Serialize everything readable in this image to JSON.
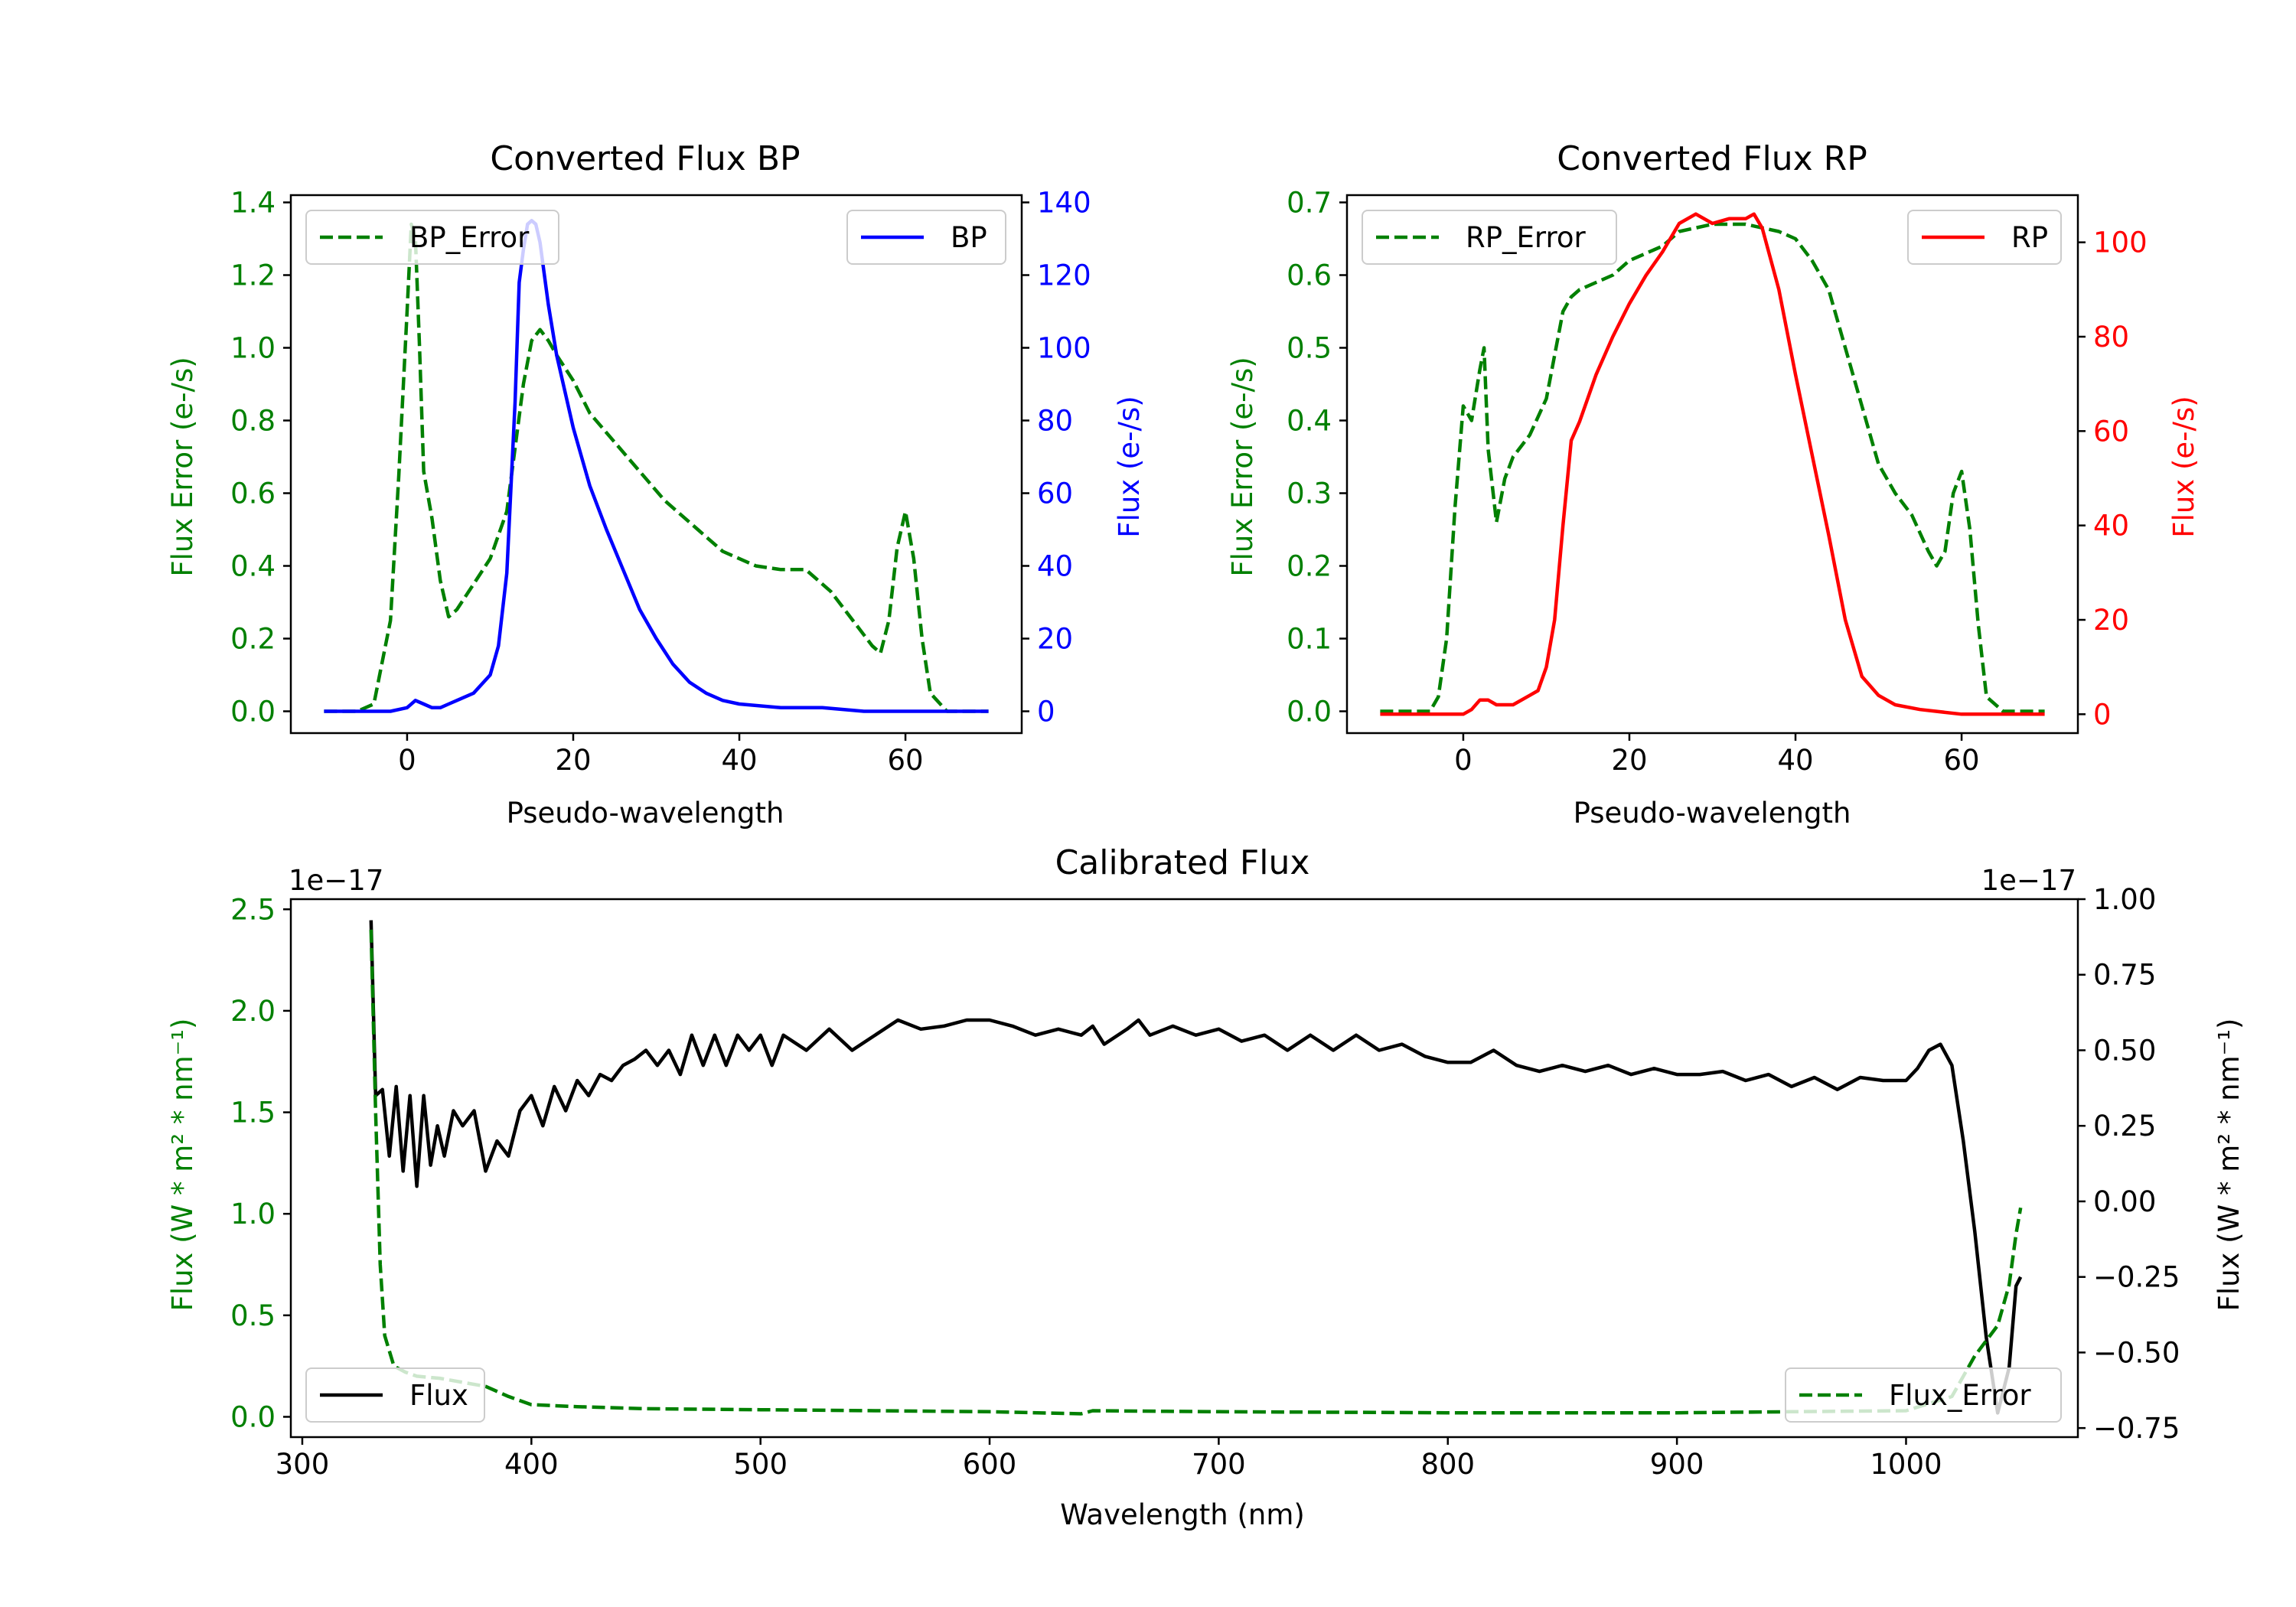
{
  "colors": {
    "green": "#008000",
    "blue": "#0000ff",
    "red": "#ff0000",
    "black": "#000000"
  },
  "chart_data": [
    {
      "type": "line",
      "title": "Converted Flux BP",
      "xlabel": "Pseudo-wavelength",
      "ylabel_left": "Flux Error (e-/s)",
      "ylabel_right": "Flux (e-/s)",
      "xlim": [
        -14,
        74
      ],
      "ylim_left": [
        -0.06,
        1.42
      ],
      "ylim_right": [
        -6,
        142
      ],
      "xticks": [
        0,
        20,
        40,
        60
      ],
      "yticks_left": [
        0.0,
        0.2,
        0.4,
        0.6,
        0.8,
        1.0,
        1.2,
        1.4
      ],
      "yticks_left_labels": [
        "0.0",
        "0.2",
        "0.4",
        "0.6",
        "0.8",
        "1.0",
        "1.2",
        "1.4"
      ],
      "yticks_right": [
        0,
        20,
        40,
        60,
        80,
        100,
        120,
        140
      ],
      "yticks_right_labels": [
        "0",
        "20",
        "40",
        "60",
        "80",
        "100",
        "120",
        "140"
      ],
      "series": [
        {
          "name": "BP_Error",
          "axis": "left",
          "style": "dashed",
          "color": "#008000",
          "x": [
            -10,
            -6,
            -4,
            -2,
            -1,
            0,
            0.5,
            1,
            1.5,
            2,
            3,
            4,
            5,
            5.5,
            6,
            8,
            10,
            12,
            14,
            15,
            16,
            17,
            18,
            20,
            22,
            25,
            28,
            31,
            35,
            38,
            42,
            45,
            48,
            51,
            54,
            56,
            57,
            58,
            59,
            60,
            61,
            62,
            63,
            65,
            70
          ],
          "y": [
            0,
            0,
            0.02,
            0.25,
            0.65,
            1.1,
            1.34,
            1.3,
            1.0,
            0.66,
            0.53,
            0.36,
            0.26,
            0.27,
            0.28,
            0.35,
            0.42,
            0.55,
            0.9,
            1.02,
            1.05,
            1.02,
            0.98,
            0.91,
            0.82,
            0.74,
            0.66,
            0.58,
            0.5,
            0.44,
            0.4,
            0.39,
            0.39,
            0.33,
            0.24,
            0.18,
            0.16,
            0.25,
            0.45,
            0.55,
            0.42,
            0.2,
            0.05,
            0,
            0
          ]
        },
        {
          "name": "BP",
          "axis": "right",
          "style": "solid",
          "color": "#0000ff",
          "x": [
            -10,
            -2,
            0,
            1,
            2,
            3,
            4,
            5,
            6,
            8,
            10,
            11,
            12,
            13,
            13.5,
            14,
            14.5,
            15,
            15.5,
            16,
            17,
            18,
            20,
            22,
            24,
            26,
            28,
            30,
            32,
            34,
            36,
            38,
            40,
            45,
            50,
            55,
            60,
            65,
            70
          ],
          "y": [
            0,
            0,
            1,
            3,
            2,
            1,
            1,
            2,
            3,
            5,
            10,
            18,
            38,
            85,
            118,
            127,
            134,
            135,
            134,
            129,
            112,
            98,
            78,
            62,
            50,
            39,
            28,
            20,
            13,
            8,
            5,
            3,
            2,
            1,
            1,
            0,
            0,
            0,
            0
          ]
        }
      ],
      "legend": [
        {
          "label": "BP_Error",
          "position": "upper-left"
        },
        {
          "label": "BP",
          "position": "upper-right"
        }
      ]
    },
    {
      "type": "line",
      "title": "Converted Flux RP",
      "xlabel": "Pseudo-wavelength",
      "ylabel_left": "Flux Error (e-/s)",
      "ylabel_right": "Flux (e-/s)",
      "xlim": [
        -14,
        74
      ],
      "ylim_left": [
        -0.03,
        0.71
      ],
      "ylim_right": [
        -4,
        110
      ],
      "xticks": [
        0,
        20,
        40,
        60
      ],
      "yticks_left": [
        0.0,
        0.1,
        0.2,
        0.3,
        0.4,
        0.5,
        0.6,
        0.7
      ],
      "yticks_left_labels": [
        "0.0",
        "0.1",
        "0.2",
        "0.3",
        "0.4",
        "0.5",
        "0.6",
        "0.7"
      ],
      "yticks_right": [
        0,
        20,
        40,
        60,
        80,
        100
      ],
      "yticks_right_labels": [
        "0",
        "20",
        "40",
        "60",
        "80",
        "100"
      ],
      "series": [
        {
          "name": "RP_Error",
          "axis": "left",
          "style": "dashed",
          "color": "#008000",
          "x": [
            -10,
            -4,
            -3,
            -2,
            -1,
            0,
            1,
            2,
            2.5,
            3,
            4,
            5,
            6,
            8,
            10,
            12,
            13,
            14,
            16,
            18,
            20,
            22,
            24,
            26,
            28,
            30,
            32,
            34,
            36,
            38,
            40,
            42,
            44,
            46,
            48,
            50,
            52,
            54,
            56,
            57,
            58,
            59,
            60,
            61,
            62,
            63,
            65,
            70
          ],
          "y": [
            0,
            0,
            0.02,
            0.1,
            0.28,
            0.42,
            0.4,
            0.47,
            0.5,
            0.36,
            0.26,
            0.32,
            0.35,
            0.38,
            0.43,
            0.55,
            0.57,
            0.58,
            0.59,
            0.6,
            0.62,
            0.63,
            0.64,
            0.66,
            0.665,
            0.67,
            0.67,
            0.67,
            0.665,
            0.66,
            0.65,
            0.62,
            0.58,
            0.5,
            0.42,
            0.34,
            0.3,
            0.27,
            0.22,
            0.2,
            0.22,
            0.3,
            0.33,
            0.25,
            0.12,
            0.02,
            0,
            0
          ]
        },
        {
          "name": "RP",
          "axis": "right",
          "style": "solid",
          "color": "#ff0000",
          "x": [
            -10,
            -2,
            0,
            1,
            2,
            3,
            4,
            5,
            6,
            8,
            9,
            10,
            11,
            12,
            13,
            14,
            16,
            18,
            20,
            22,
            24,
            26,
            28,
            30,
            32,
            34,
            35,
            36,
            38,
            40,
            42,
            44,
            46,
            48,
            50,
            52,
            55,
            60,
            65,
            70
          ],
          "y": [
            0,
            0,
            0,
            1,
            3,
            3,
            2,
            2,
            2,
            4,
            5,
            10,
            20,
            40,
            58,
            62,
            72,
            80,
            87,
            93,
            98,
            104,
            106,
            104,
            105,
            105,
            106,
            103,
            90,
            72,
            55,
            38,
            20,
            8,
            4,
            2,
            1,
            0,
            0,
            0
          ]
        }
      ],
      "legend": [
        {
          "label": "RP_Error",
          "position": "upper-left"
        },
        {
          "label": "RP",
          "position": "upper-right"
        }
      ]
    },
    {
      "type": "line",
      "title": "Calibrated Flux",
      "xlabel": "Wavelength (nm)",
      "ylabel_left": "Flux (W * m² * nm⁻¹)",
      "ylabel_right": "Flux (W * m² * nm⁻¹)",
      "offset_left": "1e−17",
      "offset_right": "1e−17",
      "xlim": [
        295,
        1075
      ],
      "ylim_left": [
        -0.1,
        2.55
      ],
      "ylim_right": [
        -0.78,
        1.0
      ],
      "xticks": [
        300,
        400,
        500,
        600,
        700,
        800,
        900,
        1000
      ],
      "yticks_left": [
        0.0,
        0.5,
        1.0,
        1.5,
        2.0,
        2.5
      ],
      "yticks_left_labels": [
        "0.0",
        "0.5",
        "1.0",
        "1.5",
        "2.0",
        "2.5"
      ],
      "yticks_right": [
        -0.75,
        -0.5,
        -0.25,
        0.0,
        0.25,
        0.5,
        0.75,
        1.0
      ],
      "yticks_right_labels": [
        "−0.75",
        "−0.50",
        "−0.25",
        "0.00",
        "0.25",
        "0.50",
        "0.75",
        "1.00"
      ],
      "series": [
        {
          "name": "Flux",
          "axis": "right",
          "style": "solid",
          "color": "#000000",
          "x": [
            330,
            332,
            335,
            338,
            341,
            344,
            347,
            350,
            353,
            356,
            359,
            362,
            366,
            370,
            375,
            380,
            385,
            390,
            395,
            400,
            405,
            410,
            415,
            420,
            425,
            430,
            435,
            440,
            445,
            450,
            455,
            460,
            465,
            470,
            475,
            480,
            485,
            490,
            495,
            500,
            505,
            510,
            520,
            530,
            540,
            550,
            560,
            570,
            580,
            590,
            600,
            610,
            620,
            630,
            640,
            645,
            650,
            660,
            665,
            670,
            680,
            690,
            700,
            710,
            720,
            730,
            740,
            750,
            760,
            770,
            780,
            790,
            800,
            810,
            820,
            830,
            840,
            850,
            860,
            870,
            880,
            890,
            900,
            910,
            920,
            930,
            940,
            950,
            960,
            970,
            980,
            990,
            1000,
            1005,
            1010,
            1015,
            1020,
            1025,
            1030,
            1035,
            1040,
            1045,
            1048,
            1050
          ],
          "y": [
            0.93,
            0.35,
            0.37,
            0.15,
            0.38,
            0.1,
            0.35,
            0.05,
            0.35,
            0.12,
            0.25,
            0.15,
            0.3,
            0.25,
            0.3,
            0.1,
            0.2,
            0.15,
            0.3,
            0.35,
            0.25,
            0.38,
            0.3,
            0.4,
            0.35,
            0.42,
            0.4,
            0.45,
            0.47,
            0.5,
            0.45,
            0.5,
            0.42,
            0.55,
            0.45,
            0.55,
            0.45,
            0.55,
            0.5,
            0.55,
            0.45,
            0.55,
            0.5,
            0.57,
            0.5,
            0.55,
            0.6,
            0.57,
            0.58,
            0.6,
            0.6,
            0.58,
            0.55,
            0.57,
            0.55,
            0.58,
            0.52,
            0.57,
            0.6,
            0.55,
            0.58,
            0.55,
            0.57,
            0.53,
            0.55,
            0.5,
            0.55,
            0.5,
            0.55,
            0.5,
            0.52,
            0.48,
            0.46,
            0.46,
            0.5,
            0.45,
            0.43,
            0.45,
            0.43,
            0.45,
            0.42,
            0.44,
            0.42,
            0.42,
            0.43,
            0.4,
            0.42,
            0.38,
            0.41,
            0.37,
            0.41,
            0.4,
            0.4,
            0.44,
            0.5,
            0.52,
            0.45,
            0.2,
            -0.1,
            -0.45,
            -0.7,
            -0.55,
            -0.28,
            -0.25
          ]
        },
        {
          "name": "Flux_Error",
          "axis": "left",
          "style": "dashed",
          "color": "#008000",
          "x": [
            330,
            332,
            334,
            336,
            340,
            345,
            350,
            360,
            370,
            380,
            390,
            400,
            420,
            450,
            500,
            550,
            600,
            640,
            645,
            700,
            800,
            900,
            950,
            1000,
            1020,
            1030,
            1040,
            1045,
            1048,
            1050
          ],
          "y": [
            2.4,
            1.5,
            0.75,
            0.4,
            0.25,
            0.22,
            0.2,
            0.19,
            0.17,
            0.15,
            0.1,
            0.06,
            0.05,
            0.04,
            0.035,
            0.03,
            0.025,
            0.015,
            0.03,
            0.025,
            0.02,
            0.02,
            0.025,
            0.03,
            0.1,
            0.3,
            0.45,
            0.65,
            0.9,
            1.03
          ]
        }
      ],
      "legend": [
        {
          "label": "Flux",
          "position": "lower-left"
        },
        {
          "label": "Flux_Error",
          "position": "lower-right"
        }
      ]
    }
  ]
}
